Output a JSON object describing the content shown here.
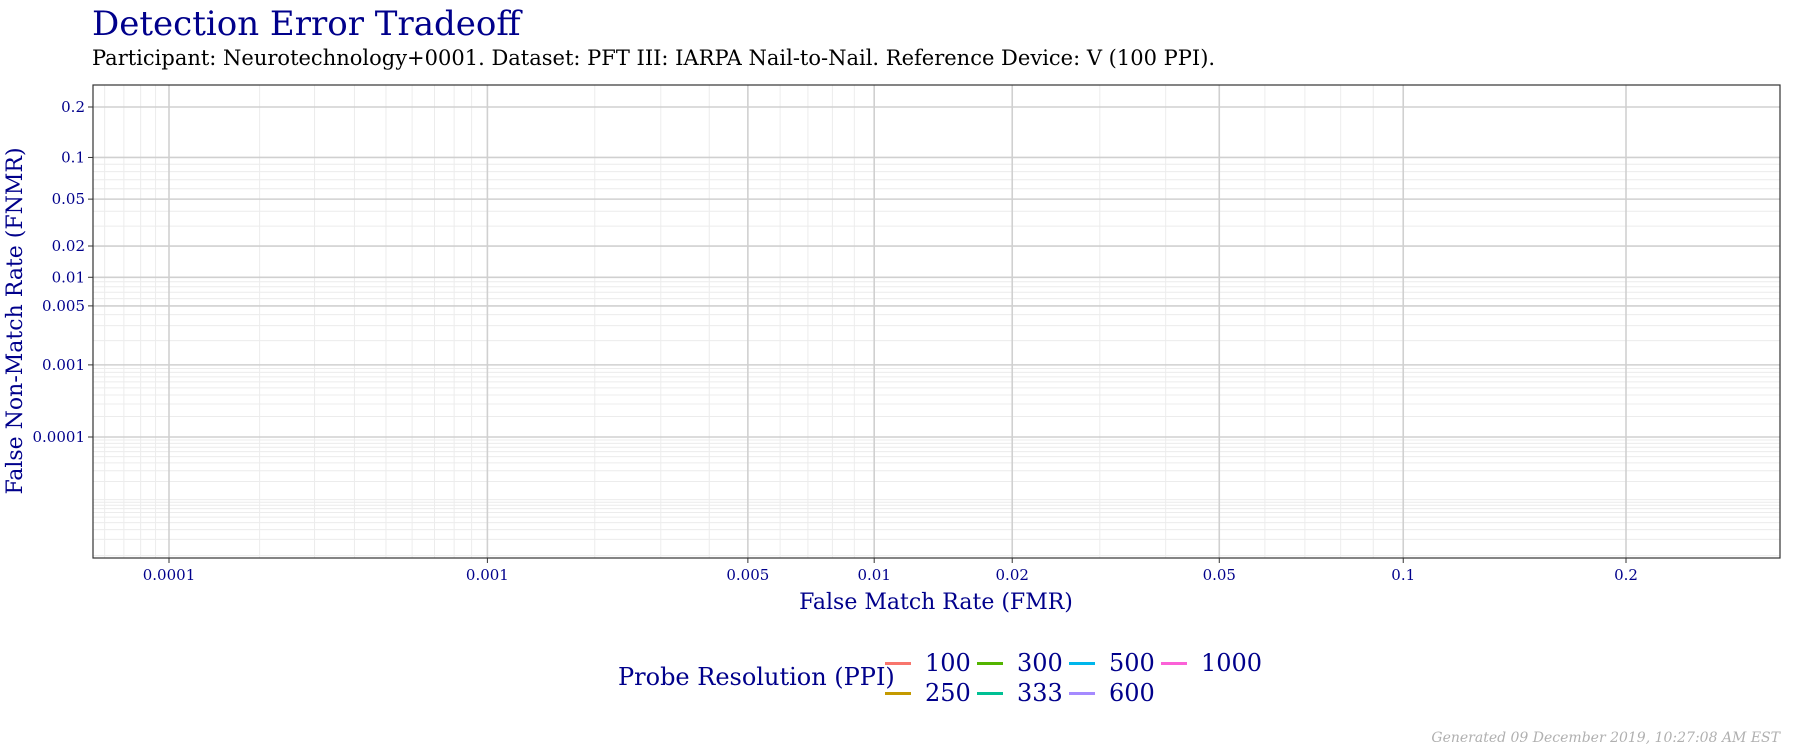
{
  "chart_data": {
    "type": "line",
    "title": "Detection Error Tradeoff",
    "subtitle": "Participant: Neurotechnology+0001. Dataset: PFT III: IARPA Nail-to-Nail. Reference Device: V (100 PPI).",
    "xlabel": "False Match Rate (FMR)",
    "ylabel": "False Non-Match Rate (FNMR)",
    "x_scale": "probit",
    "y_scale": "probit",
    "x_ticks": [
      0.0001,
      0.001,
      0.005,
      0.01,
      0.02,
      0.05,
      0.1,
      0.2
    ],
    "x_tick_labels": [
      "0.0001",
      "0.001",
      "0.005",
      "0.01",
      "0.02",
      "0.05",
      "0.1",
      "0.2"
    ],
    "y_ticks": [
      0.0001,
      0.001,
      0.005,
      0.01,
      0.02,
      0.05,
      0.1,
      0.2
    ],
    "y_tick_labels": [
      "0.0001",
      "0.001",
      "0.005",
      "0.01",
      "0.02",
      "0.05",
      "0.1",
      "0.2"
    ],
    "grid": true,
    "legend_title": "Probe Resolution (PPI)",
    "legend_position": "bottom",
    "series": [
      {
        "name": "100",
        "color": "#F8766D",
        "points": []
      },
      {
        "name": "250",
        "color": "#C49A00",
        "points": []
      },
      {
        "name": "300",
        "color": "#53B400",
        "points": []
      },
      {
        "name": "333",
        "color": "#00C094",
        "points": []
      },
      {
        "name": "500",
        "color": "#00B6EB",
        "points": []
      },
      {
        "name": "600",
        "color": "#A58AFF",
        "points": []
      },
      {
        "name": "1000",
        "color": "#FB61D7",
        "points": []
      }
    ]
  },
  "footer": "Generated 09 December 2019, 10:27:08 AM EST"
}
